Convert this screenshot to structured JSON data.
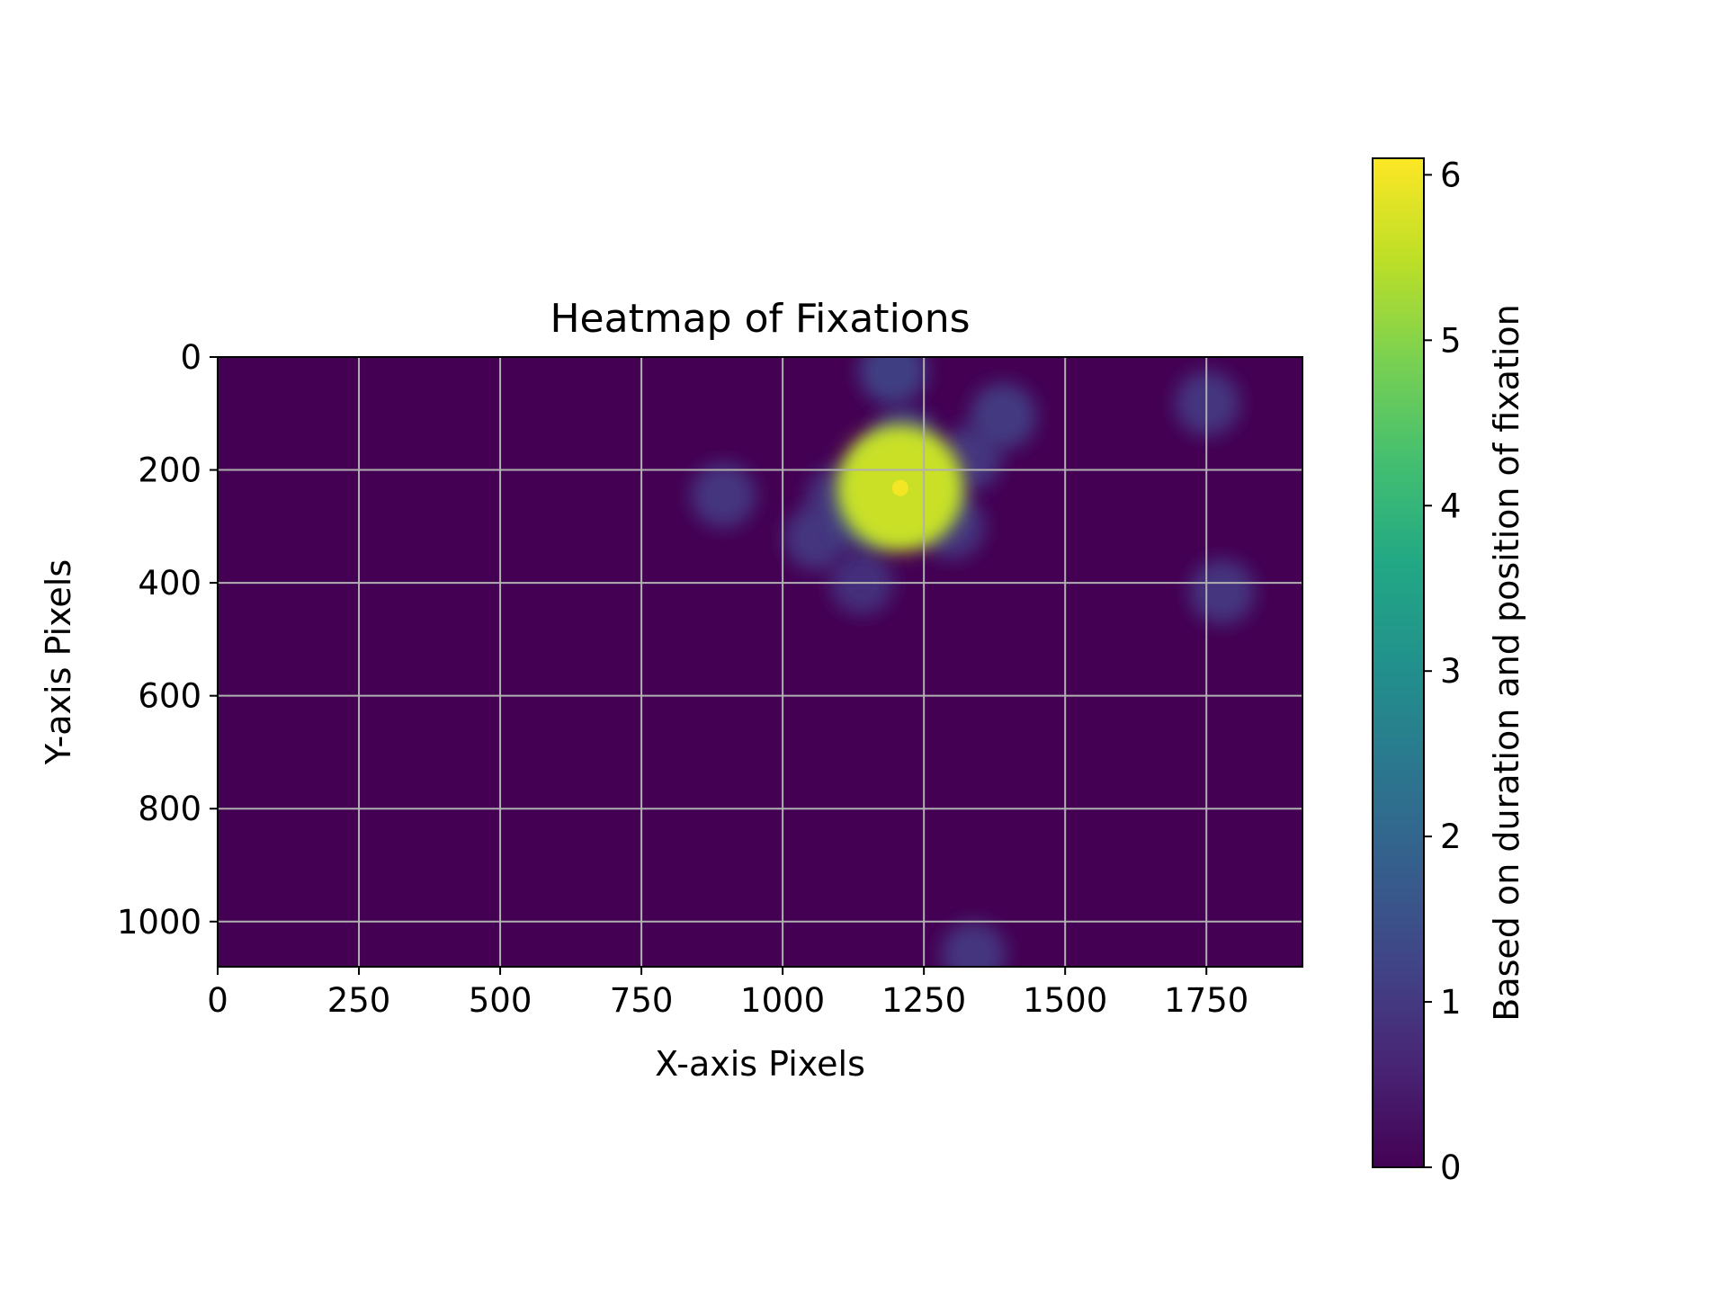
{
  "chart_data": {
    "type": "heatmap",
    "title": "Heatmap of Fixations",
    "xlabel": "X-axis Pixels",
    "ylabel": "Y-axis Pixels",
    "xlim": [
      0,
      1920
    ],
    "ylim": [
      1080,
      0
    ],
    "y_inverted": true,
    "x_ticks": [
      0,
      250,
      500,
      750,
      1000,
      1250,
      1500,
      1750
    ],
    "x_tick_labels": [
      "0",
      "250",
      "500",
      "750",
      "1000",
      "1250",
      "1500",
      "1750"
    ],
    "y_ticks": [
      0,
      200,
      400,
      600,
      800,
      1000
    ],
    "y_tick_labels": [
      "0",
      "200",
      "400",
      "600",
      "800",
      "1000"
    ],
    "grid": true,
    "colormap": "viridis",
    "colorbar": {
      "label": "Based on duration and position of fixation",
      "range": [
        0,
        6.1
      ],
      "ticks": [
        0,
        1,
        2,
        3,
        4,
        5,
        6
      ],
      "tick_labels": [
        "0",
        "1",
        "2",
        "3",
        "4",
        "5",
        "6"
      ]
    },
    "fixations": [
      {
        "x": 1208,
        "y": 232,
        "intensity": 6.0
      },
      {
        "x": 1185,
        "y": 215,
        "intensity": 1.8
      },
      {
        "x": 1150,
        "y": 280,
        "intensity": 1.4
      },
      {
        "x": 1260,
        "y": 260,
        "intensity": 1.3
      },
      {
        "x": 1100,
        "y": 250,
        "intensity": 1.0
      },
      {
        "x": 1060,
        "y": 320,
        "intensity": 1.0
      },
      {
        "x": 1140,
        "y": 400,
        "intensity": 0.9
      },
      {
        "x": 1300,
        "y": 300,
        "intensity": 1.0
      },
      {
        "x": 1330,
        "y": 180,
        "intensity": 1.0
      },
      {
        "x": 1390,
        "y": 105,
        "intensity": 1.1
      },
      {
        "x": 1195,
        "y": 25,
        "intensity": 1.2
      },
      {
        "x": 1215,
        "y": 150,
        "intensity": 1.2
      },
      {
        "x": 895,
        "y": 245,
        "intensity": 1.0
      },
      {
        "x": 1752,
        "y": 82,
        "intensity": 1.0
      },
      {
        "x": 1778,
        "y": 416,
        "intensity": 1.0
      },
      {
        "x": 1338,
        "y": 1058,
        "intensity": 1.0
      }
    ]
  },
  "colors": {
    "background": "#440154",
    "grid": "#b0b0b0",
    "viridis": [
      "#440154",
      "#482475",
      "#414487",
      "#355f8d",
      "#2a788e",
      "#21918c",
      "#22a884",
      "#44bf70",
      "#7ad151",
      "#bddf26",
      "#fde725"
    ]
  }
}
